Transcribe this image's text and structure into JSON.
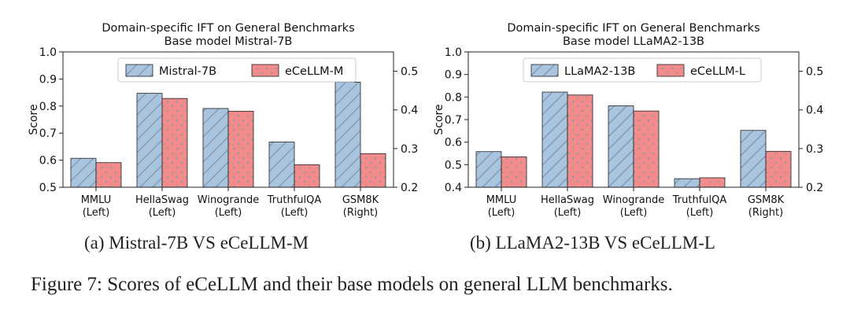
{
  "chart_data": [
    {
      "type": "bar",
      "title": "Domain-specific IFT on General Benchmarks",
      "subtitle": "Base model Mistral-7B",
      "ylabel": "Score",
      "ylim": [
        0.5,
        1.0
      ],
      "yticks": [
        "0.5",
        "0.6",
        "0.7",
        "0.8",
        "0.9",
        "1.0"
      ],
      "y2lim": [
        0.2,
        0.55
      ],
      "y2ticks": [
        "0.2",
        "0.3",
        "0.4",
        "0.5"
      ],
      "categories": [
        [
          "MMLU",
          "(Left)"
        ],
        [
          "HellaSwag",
          "(Left)"
        ],
        [
          "Winogrande",
          "(Left)"
        ],
        [
          "TruthfulQA",
          "(Left)"
        ],
        [
          "GSM8K",
          "(Right)"
        ]
      ],
      "axis_side": [
        "left",
        "left",
        "left",
        "left",
        "right"
      ],
      "series": [
        {
          "name": "Mistral-7B",
          "values": [
            0.607,
            0.847,
            0.791,
            0.667,
            0.472
          ]
        },
        {
          "name": "eCeLLM-M",
          "values": [
            0.591,
            0.828,
            0.781,
            0.583,
            0.287
          ]
        }
      ],
      "legend": "top"
    },
    {
      "type": "bar",
      "title": "Domain-specific IFT on General Benchmarks",
      "subtitle": "Base model LLaMA2-13B",
      "ylabel": "Score",
      "ylim": [
        0.4,
        1.0
      ],
      "yticks": [
        "0.4",
        "0.5",
        "0.6",
        "0.7",
        "0.8",
        "0.9",
        "1.0"
      ],
      "y2lim": [
        0.2,
        0.55
      ],
      "y2ticks": [
        "0.2",
        "0.3",
        "0.4",
        "0.5"
      ],
      "categories": [
        [
          "MMLU",
          "(Left)"
        ],
        [
          "HellaSwag",
          "(Left)"
        ],
        [
          "Winogrande",
          "(Left)"
        ],
        [
          "TruthfulQA",
          "(Left)"
        ],
        [
          "GSM8K",
          "(Right)"
        ]
      ],
      "axis_side": [
        "left",
        "left",
        "left",
        "left",
        "right"
      ],
      "series": [
        {
          "name": "LLaMA2-13B",
          "values": [
            0.558,
            0.822,
            0.761,
            0.438,
            0.347
          ]
        },
        {
          "name": "eCeLLM-L",
          "values": [
            0.535,
            0.809,
            0.738,
            0.442,
            0.293
          ]
        }
      ],
      "legend": "top"
    }
  ],
  "subcaptions": [
    "(a)  Mistral-7B VS eCeLLM-M",
    "(b)  LLaMA2-13B VS eCeLLM-L"
  ],
  "caption": "Figure 7: Scores of eCeLLM and their base models on general LLM benchmarks.",
  "colors": {
    "base_fill": "#a9c4df",
    "base_hatch": "#7a8ea5",
    "ecellm_fill": "#f28b8b",
    "ecellm_dots": "#9a9a9a",
    "edge": "#222222"
  }
}
